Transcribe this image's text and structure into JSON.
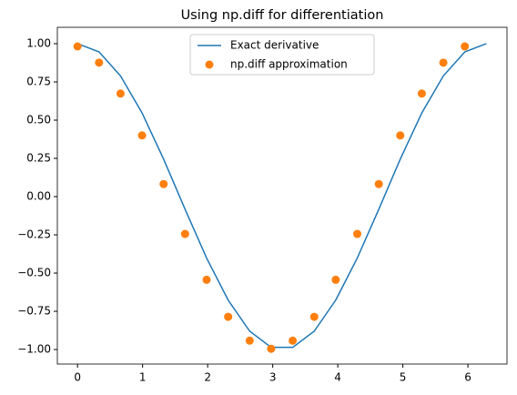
{
  "chart_data": {
    "type": "line",
    "title": "Using np.diff for differentiation",
    "series": [
      {
        "name": "Exact derivative",
        "style": "line",
        "color": "#1f77b4",
        "x": [
          0,
          0.331,
          0.661,
          0.992,
          1.323,
          1.653,
          1.984,
          2.315,
          2.646,
          2.976,
          3.307,
          3.638,
          3.968,
          4.299,
          4.63,
          4.96,
          5.291,
          5.622,
          5.952,
          6.283
        ],
        "values": [
          1,
          0.946,
          0.789,
          0.547,
          0.245,
          -0.083,
          -0.402,
          -0.677,
          -0.88,
          -0.986,
          -0.986,
          -0.88,
          -0.677,
          -0.402,
          -0.083,
          0.245,
          0.547,
          0.789,
          0.946,
          1
        ]
      },
      {
        "name": "np.diff approximation",
        "style": "points",
        "color": "#ff7f0e",
        "x": [
          0,
          0.331,
          0.661,
          0.992,
          1.323,
          1.653,
          1.984,
          2.315,
          2.646,
          2.976,
          3.307,
          3.638,
          3.968,
          4.299,
          4.63,
          4.96,
          5.291,
          5.622,
          5.952
        ],
        "values": [
          0.982,
          0.876,
          0.674,
          0.4,
          0.082,
          -0.244,
          -0.544,
          -0.786,
          -0.942,
          -0.995,
          -0.942,
          -0.786,
          -0.544,
          -0.244,
          0.082,
          0.4,
          0.674,
          0.876,
          0.982
        ]
      }
    ],
    "xlim": [
      -0.31,
      6.6
    ],
    "xticks": [
      0,
      1,
      2,
      3,
      4,
      5,
      6
    ],
    "ylim": [
      -1.095,
      1.107
    ],
    "yticks": [
      {
        "value": -1,
        "label": "−1.00"
      },
      {
        "value": -0.75,
        "label": "−0.75"
      },
      {
        "value": -0.5,
        "label": "−0.50"
      },
      {
        "value": -0.25,
        "label": "−0.25"
      },
      {
        "value": 0,
        "label": "0.00"
      },
      {
        "value": 0.25,
        "label": "0.25"
      },
      {
        "value": 0.5,
        "label": "0.50"
      },
      {
        "value": 0.75,
        "label": "0.75"
      },
      {
        "value": 1,
        "label": "1.00"
      }
    ],
    "legend": "upper center"
  }
}
